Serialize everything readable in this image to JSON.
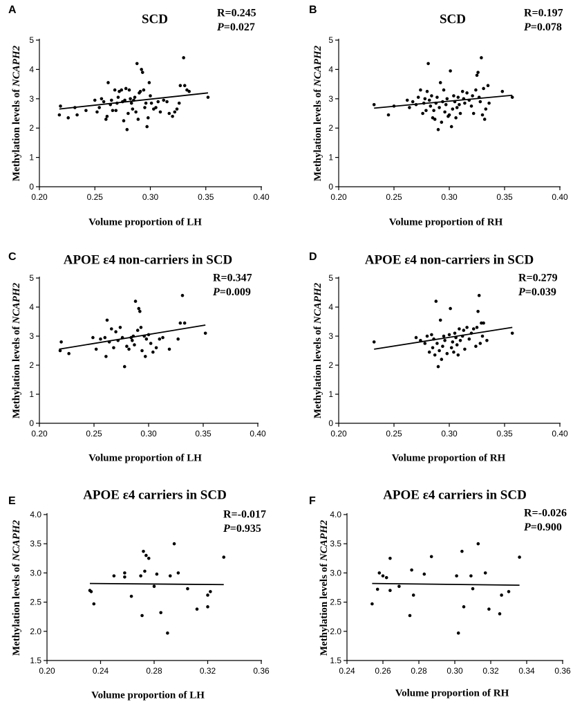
{
  "chart_data": [
    {
      "panel": "A",
      "type": "scatter",
      "title": "SCD",
      "xlabel": "Volume proportion of LH",
      "ylabel": "Methylation levels of NCAPH2",
      "ylabel_prefix": "Methylation levels of ",
      "ylabel_gene": "NCAPH2",
      "r_text": "R=0.245",
      "p_text": "=0.027",
      "xlim": [
        0.2,
        0.4
      ],
      "ylim": [
        0,
        5
      ],
      "xticks": [
        "0.20",
        "0.25",
        "0.30",
        "0.35",
        "0.40"
      ],
      "yticks": [
        "0",
        "1",
        "2",
        "3",
        "4",
        "5"
      ],
      "fit": {
        "x": [
          0.218,
          0.352
        ],
        "y": [
          2.65,
          3.2
        ]
      },
      "points": [
        [
          0.218,
          2.45
        ],
        [
          0.219,
          2.75
        ],
        [
          0.226,
          2.35
        ],
        [
          0.232,
          2.7
        ],
        [
          0.234,
          2.45
        ],
        [
          0.242,
          2.6
        ],
        [
          0.25,
          2.95
        ],
        [
          0.252,
          2.55
        ],
        [
          0.254,
          2.7
        ],
        [
          0.256,
          3.0
        ],
        [
          0.258,
          2.9
        ],
        [
          0.26,
          2.3
        ],
        [
          0.261,
          2.4
        ],
        [
          0.262,
          3.55
        ],
        [
          0.264,
          2.8
        ],
        [
          0.265,
          2.95
        ],
        [
          0.266,
          2.6
        ],
        [
          0.268,
          3.3
        ],
        [
          0.269,
          2.6
        ],
        [
          0.27,
          2.85
        ],
        [
          0.271,
          3.05
        ],
        [
          0.272,
          3.25
        ],
        [
          0.274,
          3.3
        ],
        [
          0.275,
          2.9
        ],
        [
          0.276,
          2.25
        ],
        [
          0.277,
          2.95
        ],
        [
          0.278,
          3.35
        ],
        [
          0.279,
          1.95
        ],
        [
          0.28,
          2.5
        ],
        [
          0.281,
          3.3
        ],
        [
          0.282,
          3.0
        ],
        [
          0.283,
          2.85
        ],
        [
          0.284,
          2.65
        ],
        [
          0.285,
          2.95
        ],
        [
          0.286,
          3.05
        ],
        [
          0.287,
          2.55
        ],
        [
          0.288,
          4.2
        ],
        [
          0.289,
          2.3
        ],
        [
          0.29,
          3.2
        ],
        [
          0.291,
          3.25
        ],
        [
          0.292,
          4.0
        ],
        [
          0.293,
          3.9
        ],
        [
          0.294,
          3.3
        ],
        [
          0.295,
          2.7
        ],
        [
          0.296,
          2.85
        ],
        [
          0.297,
          2.05
        ],
        [
          0.298,
          2.35
        ],
        [
          0.299,
          3.55
        ],
        [
          0.3,
          3.1
        ],
        [
          0.301,
          2.85
        ],
        [
          0.303,
          2.65
        ],
        [
          0.305,
          2.7
        ],
        [
          0.307,
          2.9
        ],
        [
          0.309,
          2.55
        ],
        [
          0.312,
          2.95
        ],
        [
          0.315,
          2.9
        ],
        [
          0.317,
          2.5
        ],
        [
          0.32,
          2.4
        ],
        [
          0.322,
          2.55
        ],
        [
          0.324,
          2.65
        ],
        [
          0.326,
          2.85
        ],
        [
          0.327,
          3.45
        ],
        [
          0.33,
          4.4
        ],
        [
          0.331,
          3.45
        ],
        [
          0.333,
          3.3
        ],
        [
          0.335,
          3.25
        ],
        [
          0.352,
          3.05
        ]
      ]
    },
    {
      "panel": "B",
      "type": "scatter",
      "title": "SCD",
      "xlabel": "Volume proportion of RH",
      "ylabel": "Methylation levels of NCAPH2",
      "ylabel_prefix": "Methylation levels of ",
      "ylabel_gene": "NCAPH2",
      "r_text": "R=0.197",
      "p_text": "=0.078",
      "xlim": [
        0.2,
        0.4
      ],
      "ylim": [
        0,
        5
      ],
      "xticks": [
        "0.20",
        "0.25",
        "0.30",
        "0.35",
        "0.40"
      ],
      "yticks": [
        "0",
        "1",
        "2",
        "3",
        "4",
        "5"
      ],
      "fit": {
        "x": [
          0.232,
          0.357
        ],
        "y": [
          2.68,
          3.12
        ]
      },
      "points": [
        [
          0.232,
          2.8
        ],
        [
          0.245,
          2.45
        ],
        [
          0.25,
          2.75
        ],
        [
          0.262,
          2.95
        ],
        [
          0.264,
          2.7
        ],
        [
          0.267,
          2.9
        ],
        [
          0.27,
          2.8
        ],
        [
          0.272,
          3.05
        ],
        [
          0.274,
          3.3
        ],
        [
          0.276,
          2.5
        ],
        [
          0.277,
          2.85
        ],
        [
          0.278,
          3.0
        ],
        [
          0.279,
          2.6
        ],
        [
          0.28,
          3.25
        ],
        [
          0.281,
          4.2
        ],
        [
          0.282,
          2.95
        ],
        [
          0.283,
          2.75
        ],
        [
          0.284,
          3.1
        ],
        [
          0.285,
          2.35
        ],
        [
          0.286,
          2.6
        ],
        [
          0.287,
          2.3
        ],
        [
          0.288,
          2.85
        ],
        [
          0.289,
          3.05
        ],
        [
          0.29,
          1.95
        ],
        [
          0.291,
          2.7
        ],
        [
          0.292,
          3.55
        ],
        [
          0.293,
          2.2
        ],
        [
          0.294,
          2.9
        ],
        [
          0.295,
          3.3
        ],
        [
          0.296,
          2.55
        ],
        [
          0.297,
          2.8
        ],
        [
          0.298,
          3.0
        ],
        [
          0.299,
          2.4
        ],
        [
          0.3,
          2.45
        ],
        [
          0.301,
          3.95
        ],
        [
          0.302,
          2.05
        ],
        [
          0.303,
          2.65
        ],
        [
          0.304,
          3.1
        ],
        [
          0.305,
          2.9
        ],
        [
          0.306,
          2.35
        ],
        [
          0.307,
          2.7
        ],
        [
          0.308,
          3.05
        ],
        [
          0.309,
          2.8
        ],
        [
          0.31,
          2.5
        ],
        [
          0.312,
          3.25
        ],
        [
          0.313,
          3.0
        ],
        [
          0.314,
          2.85
        ],
        [
          0.316,
          3.2
        ],
        [
          0.318,
          2.95
        ],
        [
          0.32,
          2.75
        ],
        [
          0.321,
          3.1
        ],
        [
          0.322,
          2.5
        ],
        [
          0.324,
          3.3
        ],
        [
          0.325,
          3.8
        ],
        [
          0.326,
          3.9
        ],
        [
          0.327,
          3.05
        ],
        [
          0.328,
          2.9
        ],
        [
          0.329,
          4.4
        ],
        [
          0.33,
          2.45
        ],
        [
          0.331,
          3.35
        ],
        [
          0.332,
          2.3
        ],
        [
          0.333,
          2.65
        ],
        [
          0.335,
          3.45
        ],
        [
          0.336,
          2.85
        ],
        [
          0.348,
          3.25
        ],
        [
          0.357,
          3.05
        ]
      ]
    },
    {
      "panel": "C",
      "type": "scatter",
      "title": "APOE ε4 non-carriers in SCD",
      "xlabel": "Volume proportion of LH",
      "ylabel": "Methylation levels of NCAPH2",
      "ylabel_prefix": "Methylation levels of ",
      "ylabel_gene": "NCAPH2",
      "r_text": "R=0.347",
      "p_text": "=0.009",
      "xlim": [
        0.2,
        0.4
      ],
      "ylim": [
        0,
        5
      ],
      "xticks": [
        "0.20",
        "0.25",
        "0.30",
        "0.35",
        "0.40"
      ],
      "yticks": [
        "0",
        "1",
        "2",
        "3",
        "4",
        "5"
      ],
      "fit": {
        "x": [
          0.218,
          0.352
        ],
        "y": [
          2.55,
          3.38
        ]
      },
      "points": [
        [
          0.219,
          2.5
        ],
        [
          0.22,
          2.8
        ],
        [
          0.227,
          2.4
        ],
        [
          0.249,
          2.95
        ],
        [
          0.252,
          2.55
        ],
        [
          0.256,
          2.9
        ],
        [
          0.26,
          2.95
        ],
        [
          0.261,
          2.3
        ],
        [
          0.262,
          3.55
        ],
        [
          0.264,
          2.8
        ],
        [
          0.266,
          3.25
        ],
        [
          0.268,
          2.6
        ],
        [
          0.27,
          3.15
        ],
        [
          0.272,
          2.85
        ],
        [
          0.274,
          3.3
        ],
        [
          0.276,
          2.95
        ],
        [
          0.278,
          1.95
        ],
        [
          0.28,
          2.65
        ],
        [
          0.282,
          2.55
        ],
        [
          0.284,
          2.95
        ],
        [
          0.285,
          2.85
        ],
        [
          0.286,
          3.0
        ],
        [
          0.287,
          2.7
        ],
        [
          0.288,
          4.2
        ],
        [
          0.29,
          3.2
        ],
        [
          0.291,
          3.95
        ],
        [
          0.292,
          3.85
        ],
        [
          0.293,
          3.3
        ],
        [
          0.294,
          2.5
        ],
        [
          0.296,
          3.0
        ],
        [
          0.297,
          2.3
        ],
        [
          0.298,
          2.9
        ],
        [
          0.3,
          3.05
        ],
        [
          0.302,
          2.75
        ],
        [
          0.304,
          2.45
        ],
        [
          0.307,
          2.6
        ],
        [
          0.31,
          2.9
        ],
        [
          0.313,
          2.95
        ],
        [
          0.319,
          2.55
        ],
        [
          0.327,
          2.9
        ],
        [
          0.329,
          3.45
        ],
        [
          0.331,
          4.4
        ],
        [
          0.333,
          3.45
        ],
        [
          0.352,
          3.1
        ]
      ]
    },
    {
      "panel": "D",
      "type": "scatter",
      "title": "APOE ε4 non-carriers in SCD",
      "xlabel": "Volume proportion of RH",
      "ylabel": "Methylation levels of NCAPH2",
      "ylabel_prefix": "Methylation levels of ",
      "ylabel_gene": "NCAPH2",
      "r_text": "R=0.279",
      "p_text": "=0.039",
      "xlim": [
        0.2,
        0.4
      ],
      "ylim": [
        0,
        5
      ],
      "xticks": [
        "0.20",
        "0.25",
        "0.30",
        "0.35",
        "0.40"
      ],
      "yticks": [
        "0",
        "1",
        "2",
        "3",
        "4",
        "5"
      ],
      "fit": {
        "x": [
          0.232,
          0.357
        ],
        "y": [
          2.55,
          3.3
        ]
      },
      "points": [
        [
          0.232,
          2.8
        ],
        [
          0.27,
          2.95
        ],
        [
          0.274,
          2.85
        ],
        [
          0.278,
          2.75
        ],
        [
          0.28,
          3.0
        ],
        [
          0.282,
          2.45
        ],
        [
          0.284,
          3.05
        ],
        [
          0.285,
          2.6
        ],
        [
          0.286,
          2.9
        ],
        [
          0.287,
          2.35
        ],
        [
          0.288,
          4.2
        ],
        [
          0.289,
          2.75
        ],
        [
          0.29,
          1.95
        ],
        [
          0.291,
          2.5
        ],
        [
          0.292,
          3.55
        ],
        [
          0.293,
          2.2
        ],
        [
          0.294,
          2.65
        ],
        [
          0.295,
          3.0
        ],
        [
          0.296,
          2.85
        ],
        [
          0.298,
          2.4
        ],
        [
          0.3,
          3.05
        ],
        [
          0.301,
          3.95
        ],
        [
          0.302,
          2.6
        ],
        [
          0.303,
          2.8
        ],
        [
          0.304,
          2.45
        ],
        [
          0.305,
          3.1
        ],
        [
          0.306,
          2.95
        ],
        [
          0.307,
          2.7
        ],
        [
          0.308,
          2.35
        ],
        [
          0.309,
          3.25
        ],
        [
          0.31,
          2.85
        ],
        [
          0.312,
          3.0
        ],
        [
          0.313,
          3.2
        ],
        [
          0.314,
          2.55
        ],
        [
          0.316,
          3.3
        ],
        [
          0.318,
          2.9
        ],
        [
          0.32,
          3.1
        ],
        [
          0.322,
          3.25
        ],
        [
          0.324,
          2.65
        ],
        [
          0.325,
          3.3
        ],
        [
          0.326,
          3.85
        ],
        [
          0.327,
          4.4
        ],
        [
          0.328,
          2.75
        ],
        [
          0.329,
          3.45
        ],
        [
          0.33,
          3.0
        ],
        [
          0.331,
          3.45
        ],
        [
          0.334,
          2.85
        ],
        [
          0.357,
          3.1
        ]
      ]
    },
    {
      "panel": "E",
      "type": "scatter",
      "title": "APOE ε4 carriers in SCD",
      "xlabel": "Volume proportion of LH",
      "ylabel": "Methylation levels of NCAPH2",
      "ylabel_prefix": "Methylation levels of ",
      "ylabel_gene": "NCAPH2",
      "r_text": "R=-0.017",
      "p_text": "=0.935",
      "xlim": [
        0.2,
        0.36
      ],
      "ylim": [
        1.5,
        4.0
      ],
      "xticks": [
        "0.20",
        "0.24",
        "0.28",
        "0.32",
        "0.36"
      ],
      "yticks": [
        "1.5",
        "2.0",
        "2.5",
        "3.0",
        "3.5",
        "4.0"
      ],
      "fit": {
        "x": [
          0.232,
          0.332
        ],
        "y": [
          2.82,
          2.8
        ]
      },
      "points": [
        [
          0.232,
          2.7
        ],
        [
          0.233,
          2.68
        ],
        [
          0.235,
          2.47
        ],
        [
          0.25,
          2.95
        ],
        [
          0.258,
          2.93
        ],
        [
          0.258,
          3.0
        ],
        [
          0.263,
          2.6
        ],
        [
          0.27,
          2.95
        ],
        [
          0.271,
          2.27
        ],
        [
          0.272,
          3.37
        ],
        [
          0.273,
          3.03
        ],
        [
          0.274,
          3.3
        ],
        [
          0.276,
          3.25
        ],
        [
          0.28,
          2.77
        ],
        [
          0.282,
          2.98
        ],
        [
          0.285,
          2.32
        ],
        [
          0.29,
          1.97
        ],
        [
          0.292,
          2.95
        ],
        [
          0.295,
          3.5
        ],
        [
          0.298,
          3.0
        ],
        [
          0.305,
          2.73
        ],
        [
          0.312,
          2.38
        ],
        [
          0.32,
          2.42
        ],
        [
          0.32,
          2.62
        ],
        [
          0.322,
          2.68
        ],
        [
          0.332,
          3.27
        ]
      ]
    },
    {
      "panel": "F",
      "type": "scatter",
      "title": "APOE ε4 carriers in SCD",
      "xlabel": "Volume proportion of RH",
      "ylabel": "Methylation levels of NCAPH2",
      "ylabel_prefix": "Methylation levels of ",
      "ylabel_gene": "NCAPH2",
      "r_text": "R=-0.026",
      "p_text": "=0.900",
      "xlim": [
        0.24,
        0.36
      ],
      "ylim": [
        1.5,
        4.0
      ],
      "xticks": [
        "0.24",
        "0.26",
        "0.28",
        "0.30",
        "0.32",
        "0.34",
        "0.36"
      ],
      "yticks": [
        "1.5",
        "2.0",
        "2.5",
        "3.0",
        "3.5",
        "4.0"
      ],
      "fit": {
        "x": [
          0.254,
          0.336
        ],
        "y": [
          2.82,
          2.79
        ]
      },
      "points": [
        [
          0.254,
          2.47
        ],
        [
          0.257,
          2.72
        ],
        [
          0.258,
          3.0
        ],
        [
          0.26,
          2.95
        ],
        [
          0.262,
          2.92
        ],
        [
          0.264,
          3.25
        ],
        [
          0.264,
          2.7
        ],
        [
          0.269,
          2.77
        ],
        [
          0.275,
          2.27
        ],
        [
          0.276,
          3.05
        ],
        [
          0.277,
          2.62
        ],
        [
          0.283,
          2.98
        ],
        [
          0.287,
          3.28
        ],
        [
          0.301,
          2.95
        ],
        [
          0.302,
          1.97
        ],
        [
          0.304,
          3.37
        ],
        [
          0.305,
          2.42
        ],
        [
          0.309,
          2.95
        ],
        [
          0.31,
          2.73
        ],
        [
          0.313,
          3.5
        ],
        [
          0.317,
          3.0
        ],
        [
          0.319,
          2.38
        ],
        [
          0.325,
          2.3
        ],
        [
          0.326,
          2.62
        ],
        [
          0.33,
          2.68
        ],
        [
          0.336,
          3.27
        ]
      ]
    }
  ]
}
